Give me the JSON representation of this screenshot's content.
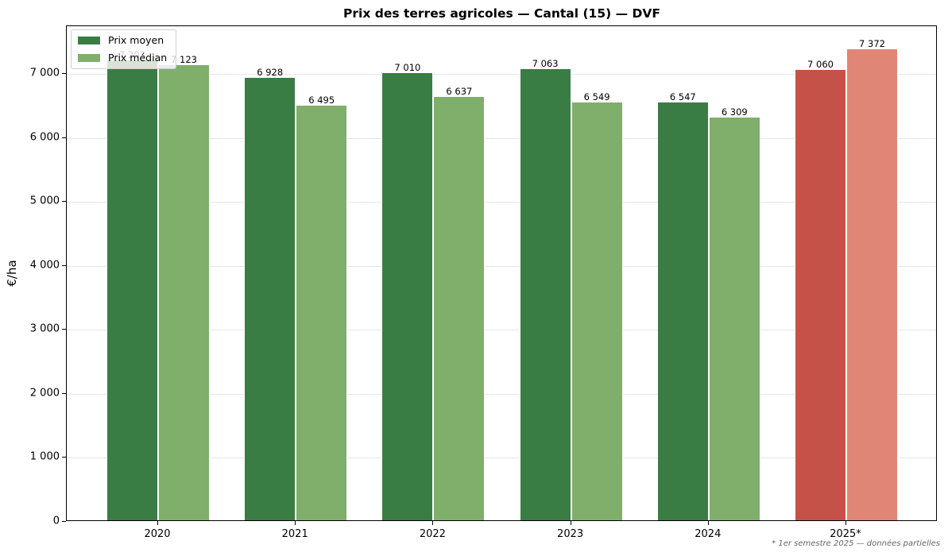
{
  "chart_data": {
    "type": "bar",
    "title": "Prix des terres agricoles — Cantal (15) — DVF",
    "xlabel": "",
    "ylabel": "€/ha",
    "categories": [
      "2020",
      "2021",
      "2022",
      "2023",
      "2024",
      "2025*"
    ],
    "series": [
      {
        "name": "Prix moyen",
        "values": [
          7203,
          6928,
          7010,
          7063,
          6547,
          7060
        ],
        "color": "#3a7d44",
        "partial_color": "#c55248"
      },
      {
        "name": "Prix médian",
        "values": [
          7123,
          6495,
          6637,
          6549,
          6309,
          7372
        ],
        "color": "#7faf6a",
        "partial_color": "#e08677"
      }
    ],
    "value_labels": {
      "mean": [
        "7 203",
        "6 928",
        "7 010",
        "7 063",
        "6 547",
        "7 060"
      ],
      "median": [
        "7 123",
        "6 495",
        "6 637",
        "6 549",
        "6 309",
        "7 372"
      ]
    },
    "ylim": [
      0,
      7750
    ],
    "yticks": [
      0,
      1000,
      2000,
      3000,
      4000,
      5000,
      6000,
      7000
    ],
    "ytick_labels": [
      "0",
      "1 000",
      "2 000",
      "3 000",
      "4 000",
      "5 000",
      "6 000",
      "7 000"
    ],
    "grid": "y",
    "legend_position": "upper left",
    "annotation": "* 1er semestre 2025 — données partielles"
  }
}
